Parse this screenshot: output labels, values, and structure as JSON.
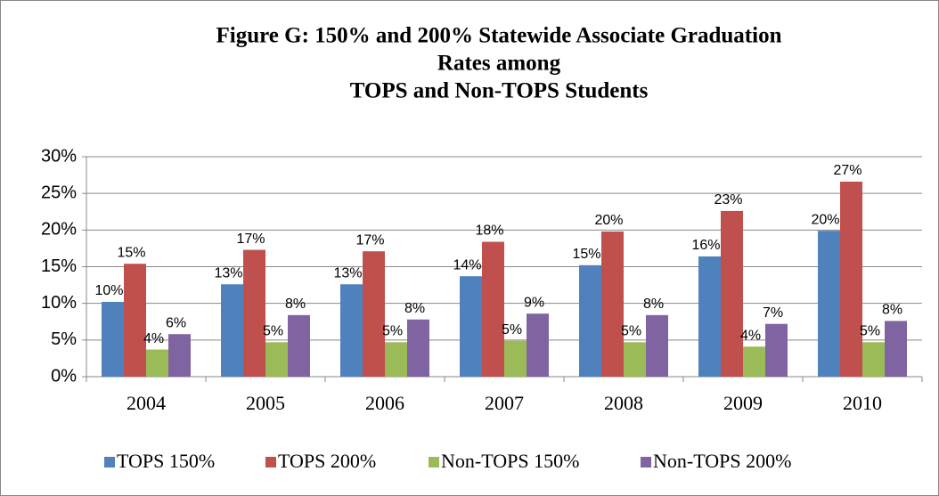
{
  "chart_data": {
    "type": "bar",
    "title": [
      "Figure G:  150% and 200% Statewide Associate Graduation",
      "Rates among",
      "TOPS and Non-TOPS Students"
    ],
    "categories": [
      "2004",
      "2005",
      "2006",
      "2007",
      "2008",
      "2009",
      "2010"
    ],
    "series": [
      {
        "name": "TOPS 150%",
        "color": "#4f81bd",
        "values": [
          10.2,
          12.6,
          12.6,
          13.7,
          15.2,
          16.4,
          19.9
        ],
        "value_labels": [
          "10%",
          "13%",
          "13%",
          "14%",
          "15%",
          "16%",
          "20%"
        ]
      },
      {
        "name": "TOPS 200%",
        "color": "#c0504d",
        "values": [
          15.4,
          17.3,
          17.1,
          18.4,
          19.8,
          22.6,
          26.6
        ],
        "value_labels": [
          "15%",
          "17%",
          "17%",
          "18%",
          "20%",
          "23%",
          "27%"
        ]
      },
      {
        "name": "Non-TOPS 150%",
        "color": "#9bbb59",
        "values": [
          3.7,
          4.7,
          4.7,
          4.9,
          4.7,
          4.1,
          4.7
        ],
        "value_labels": [
          "4%",
          "5%",
          "5%",
          "5%",
          "5%",
          "4%",
          "5%"
        ]
      },
      {
        "name": "Non-TOPS 200%",
        "color": "#8064a2",
        "values": [
          5.8,
          8.4,
          7.8,
          8.6,
          8.4,
          7.2,
          7.6
        ],
        "value_labels": [
          "6%",
          "8%",
          "8%",
          "9%",
          "8%",
          "7%",
          "8%"
        ]
      }
    ],
    "ylim": [
      0,
      30
    ],
    "yticks": [
      {
        "value": 0,
        "label": "0%"
      },
      {
        "value": 5,
        "label": "5%"
      },
      {
        "value": 10,
        "label": "10%"
      },
      {
        "value": 15,
        "label": "15%"
      },
      {
        "value": 20,
        "label": "20%"
      },
      {
        "value": 25,
        "label": "25%"
      },
      {
        "value": 30,
        "label": "30%"
      }
    ],
    "grid": true,
    "legend": "bottom"
  }
}
